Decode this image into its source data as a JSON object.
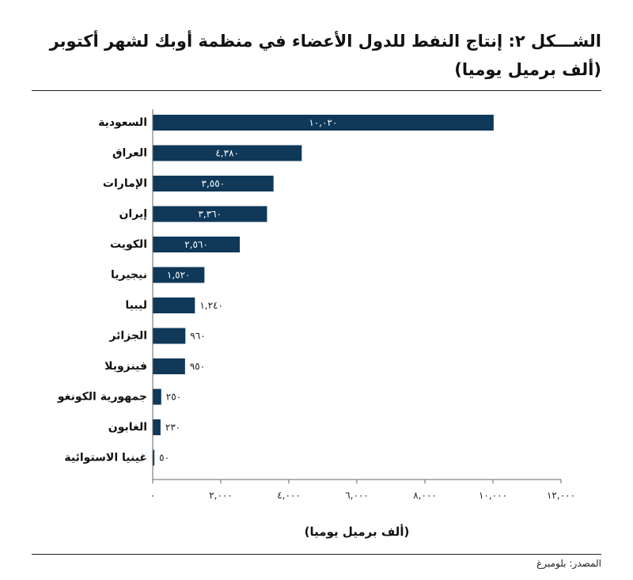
{
  "title_line1": "الشـــكل ٢: إنتاج النفط للدول الأعضاء في منظمة أوبك لشهر أكتوبر",
  "title_line2": "(ألف برميل يوميا)",
  "source_label": "المصدر:",
  "source_value": "بلومبرغ",
  "colors": {
    "bar": "#0f3859",
    "label_on_bar": "#ffffff",
    "label_off_bar": "#1a1a1a"
  },
  "chart_data": {
    "type": "bar",
    "orientation": "horizontal",
    "categories": [
      "السعودية",
      "العراق",
      "الإمارات",
      "إيران",
      "الكويت",
      "نيجيريا",
      "ليبيا",
      "الجزائر",
      "فينزويلا",
      "جمهورية الكونغو",
      "الغابون",
      "غينيا الاستوائية"
    ],
    "values": [
      10020,
      4380,
      3550,
      3360,
      2560,
      1520,
      1240,
      960,
      950,
      250,
      230,
      50
    ],
    "value_labels": [
      "١٠,٠٢٠",
      "٤,٣٨٠",
      "٣,٥٥٠",
      "٣,٣٦٠",
      "٢,٥٦٠",
      "١,٥٢٠",
      "١,٢٤٠",
      "٩٦٠",
      "٩٥٠",
      "٢٥٠",
      "٢٣٠",
      "٥٠"
    ],
    "xlim": [
      0,
      12000
    ],
    "ticks": [
      0,
      2000,
      4000,
      6000,
      8000,
      10000,
      12000
    ],
    "tick_labels": [
      "٠",
      "٢,٠٠٠",
      "٤,٠٠٠",
      "٦,٠٠٠",
      "٨,٠٠٠",
      "١٠,٠٠٠",
      "١٢,٠٠٠"
    ],
    "xlabel": "(ألف برميل يوميا)",
    "grid": false,
    "legend": "none"
  }
}
